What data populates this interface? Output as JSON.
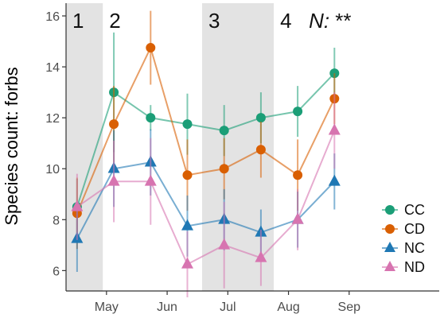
{
  "chart_data": {
    "type": "line",
    "title": "",
    "xlabel": "",
    "ylabel": "Species count: forbs",
    "ylim": [
      5.2,
      16.5
    ],
    "yticks": [
      6,
      8,
      10,
      12,
      14,
      16
    ],
    "xlim": [
      0.7,
      10.85
    ],
    "x": [
      1,
      2,
      3,
      4,
      5,
      6,
      7,
      8,
      9,
      10
    ],
    "month_ticks": [
      {
        "x": 1.8,
        "label": "May"
      },
      {
        "x": 3.45,
        "label": "Jun"
      },
      {
        "x": 5.1,
        "label": "Jul"
      },
      {
        "x": 6.75,
        "label": "Aug"
      },
      {
        "x": 8.4,
        "label": "Sep"
      }
    ],
    "periods": [
      {
        "label": "1",
        "x0": 0.7,
        "x1": 1.7,
        "shaded": true
      },
      {
        "label": "2",
        "x0": 1.7,
        "x1": 4.4,
        "shaded": false
      },
      {
        "label": "3",
        "x0": 4.4,
        "x1": 6.35,
        "shaded": true
      },
      {
        "label": "4",
        "x0": 6.35,
        "x1": 10.85,
        "shaded": false
      }
    ],
    "significance": {
      "label": "N:",
      "stars": " **"
    },
    "series": [
      {
        "name": "CC",
        "color": "#1b9e77",
        "marker": "circle",
        "values": [
          8.5,
          13.0,
          12.0,
          11.75,
          11.5,
          12.0,
          12.25,
          13.75
        ],
        "x": [
          1,
          2,
          3,
          4,
          5,
          6,
          7,
          8
        ],
        "err": [
          1.1,
          2.35,
          0.5,
          1.2,
          1.0,
          1.0,
          1.0,
          1.0
        ]
      },
      {
        "name": "CD",
        "color": "#d95f02",
        "marker": "circle",
        "values": [
          8.25,
          11.75,
          14.75,
          9.75,
          10.0,
          10.75,
          9.75,
          12.75
        ],
        "x": [
          1,
          2,
          3,
          4,
          5,
          6,
          7,
          8
        ],
        "err": [
          1.4,
          1.5,
          1.45,
          1.4,
          1.2,
          1.1,
          1.4,
          1.0
        ]
      },
      {
        "name": "NC",
        "color": "#1f78b4",
        "marker": "triangle",
        "values": [
          7.25,
          10.0,
          10.25,
          7.75,
          8.0,
          7.5,
          8.0,
          9.5
        ],
        "x": [
          1,
          2,
          3,
          4,
          5,
          6,
          7,
          8
        ],
        "err": [
          1.3,
          1.5,
          1.3,
          1.2,
          1.2,
          0.9,
          1.1,
          1.1
        ]
      },
      {
        "name": "ND",
        "color": "#d774b0",
        "marker": "triangle",
        "values": [
          8.5,
          9.5,
          9.5,
          6.25,
          7.0,
          6.5,
          8.0,
          11.5
        ],
        "x": [
          1,
          2,
          3,
          4,
          5,
          6,
          7,
          8
        ],
        "err": [
          1.3,
          1.6,
          1.7,
          1.3,
          1.7,
          1.1,
          1.2,
          1.5
        ]
      }
    ],
    "legend": {
      "position": "bottom-right",
      "entries": [
        "CC",
        "CD",
        "NC",
        "ND"
      ]
    },
    "grid": false
  }
}
